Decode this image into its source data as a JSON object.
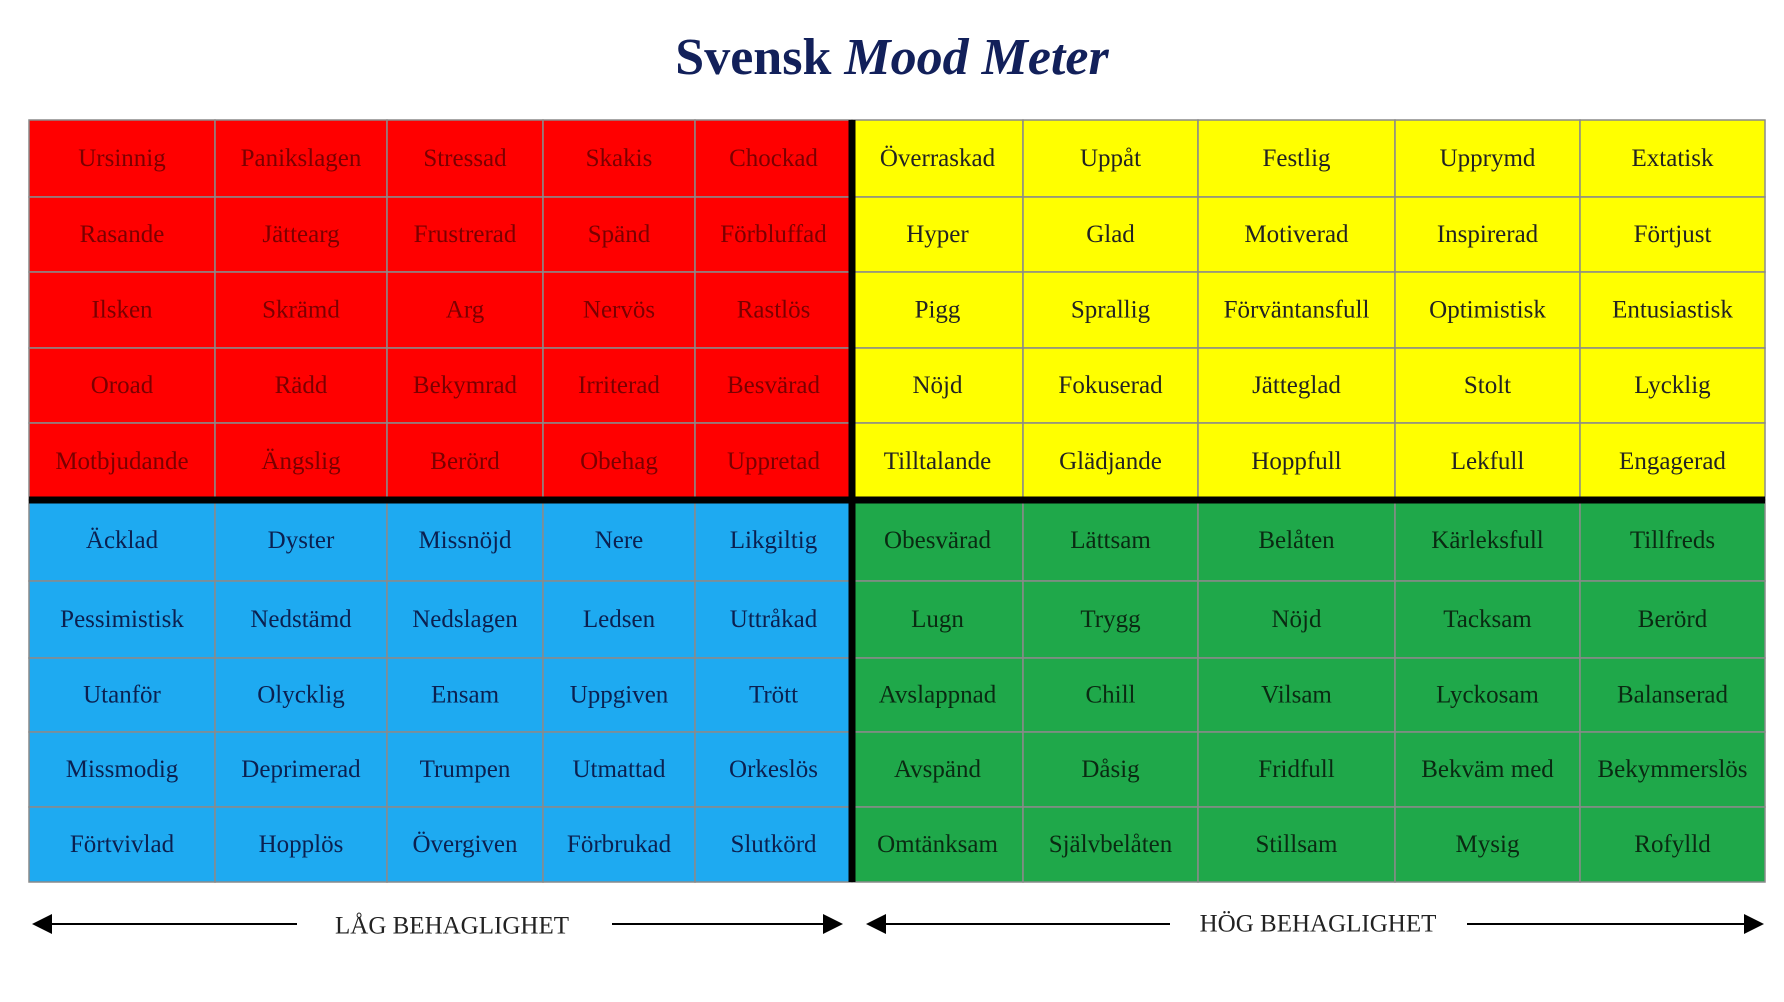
{
  "title": {
    "plain": "Svensk",
    "italic": "Mood Meter"
  },
  "quadrants": [
    {
      "color": "#ff0000",
      "text_color": "#7a0000",
      "rows": [
        [
          "Ursinnig",
          "Panikslagen",
          "Stressad",
          "Skakis",
          "Chockad"
        ],
        [
          "Rasande",
          "Jättearg",
          "Frustrerad",
          "Spänd",
          "Förbluffad"
        ],
        [
          "Ilsken",
          "Skrämd",
          "Arg",
          "Nervös",
          "Rastlös"
        ],
        [
          "Oroad",
          "Rädd",
          "Bekymrad",
          "Irriterad",
          "Besvärad"
        ],
        [
          "Motbjudande",
          "Ängslig",
          "Berörd",
          "Obehag",
          "Uppretad"
        ]
      ]
    },
    {
      "color": "#ffff00",
      "text_color": "#222222",
      "rows": [
        [
          "Överraskad",
          "Uppåt",
          "Festlig",
          "Upprymd",
          "Extatisk"
        ],
        [
          "Hyper",
          "Glad",
          "Motiverad",
          "Inspirerad",
          "Förtjust"
        ],
        [
          "Pigg",
          "Sprallig",
          "Förväntansfull",
          "Optimistisk",
          "Entusiastisk"
        ],
        [
          "Nöjd",
          "Fokuserad",
          "Jätteglad",
          "Stolt",
          "Lycklig"
        ],
        [
          "Tilltalande",
          "Glädjande",
          "Hoppfull",
          "Lekfull",
          "Engagerad"
        ]
      ]
    },
    {
      "color": "#1eaaf1",
      "text_color": "#0b2050",
      "rows": [
        [
          "Äcklad",
          "Dyster",
          "Missnöjd",
          "Nere",
          "Likgiltig"
        ],
        [
          "Pessimistisk",
          "Nedstämd",
          "Nedslagen",
          "Ledsen",
          "Uttråkad"
        ],
        [
          "Utanför",
          "Olycklig",
          "Ensam",
          "Uppgiven",
          "Trött"
        ],
        [
          "Missmodig",
          "Deprimerad",
          "Trumpen",
          "Utmattad",
          "Orkeslös"
        ],
        [
          "Förtvivlad",
          "Hopplös",
          "Övergiven",
          "Förbrukad",
          "Slutkörd"
        ]
      ]
    },
    {
      "color": "#1fa84a",
      "text_color": "#0a2a12",
      "rows": [
        [
          "Obesvärad",
          "Lättsam",
          "Belåten",
          "Kärleksfull",
          "Tillfreds"
        ],
        [
          "Lugn",
          "Trygg",
          "Nöjd",
          "Tacksam",
          "Berörd"
        ],
        [
          "Avslappnad",
          "Chill",
          "Vilsam",
          "Lyckosam",
          "Balanserad"
        ],
        [
          "Avspänd",
          "Dåsig",
          "Fridfull",
          "Bekväm med",
          "Bekymmerslös"
        ],
        [
          "Omtänksam",
          "Självbelåten",
          "Stillsam",
          "Mysig",
          "Rofylld"
        ]
      ]
    }
  ],
  "axis": {
    "left": "LÅG BEHAGLIGHET",
    "right": "HÖG BEHAGLIGHET"
  }
}
